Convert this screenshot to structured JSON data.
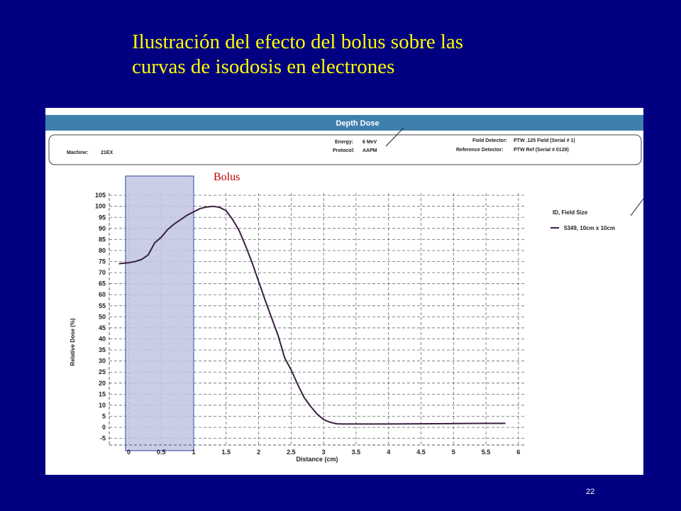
{
  "slide": {
    "title_line1": "Ilustración del efecto del bolus sobre las",
    "title_line2": "curvas de isodosis en electrones",
    "page_number": "22"
  },
  "report": {
    "header": "Depth Dose",
    "machine_label": "Machine:",
    "machine_value": "21EX",
    "energy_label": "Energy:",
    "energy_value": "6 MeV",
    "protocol_label": "Protocol:",
    "protocol_value": "AAPM",
    "field_detector_label": "Field Detector:",
    "field_detector_value": "PTW .125 Field (Serial # 1)",
    "reference_detector_label": "Reference Detector:",
    "reference_detector_value": "PTW Ref (Serial # 0129)"
  },
  "bolus": {
    "label": "Bolus",
    "x_start": -0.05,
    "x_end": 1.0
  },
  "colors": {
    "background": "#000080",
    "title": "#ffff00",
    "header_bar": "#3e7fae",
    "curve": "#3a2040",
    "bolus_fill": "#c0c6e2",
    "bolus_stroke": "#3347a8",
    "bolus_label": "#c00000"
  },
  "chart_data": {
    "type": "line",
    "xlabel": "Distance (cm)",
    "ylabel": "Relative Dose (%)",
    "xlim": [
      -0.3,
      6.1
    ],
    "ylim": [
      -8,
      106
    ],
    "x_ticks": [
      "0",
      "0.5",
      "1",
      "1.5",
      "2",
      "2.5",
      "3",
      "3.5",
      "4",
      "4.5",
      "5",
      "5.5",
      "6"
    ],
    "y_ticks": [
      "105",
      "100",
      "95",
      "90",
      "85",
      "80",
      "75",
      "70",
      "65",
      "60",
      "55",
      "50",
      "45",
      "40",
      "35",
      "30",
      "25",
      "20",
      "15",
      "10",
      "5",
      "0",
      "-5"
    ],
    "legend_title": "ID, Field Size",
    "legend_position": "right",
    "grid": true,
    "series": [
      {
        "name": "5349, 10cm x 10cm",
        "points": [
          [
            -0.15,
            74
          ],
          [
            0.0,
            74.5
          ],
          [
            0.1,
            75
          ],
          [
            0.2,
            76
          ],
          [
            0.3,
            78
          ],
          [
            0.4,
            83.5
          ],
          [
            0.5,
            86
          ],
          [
            0.6,
            89.5
          ],
          [
            0.7,
            92
          ],
          [
            0.8,
            94
          ],
          [
            0.9,
            96
          ],
          [
            1.0,
            97.5
          ],
          [
            1.1,
            99
          ],
          [
            1.2,
            99.7
          ],
          [
            1.3,
            100
          ],
          [
            1.4,
            99.5
          ],
          [
            1.5,
            98
          ],
          [
            1.6,
            94
          ],
          [
            1.7,
            89
          ],
          [
            1.8,
            82
          ],
          [
            1.9,
            74.5
          ],
          [
            2.0,
            66
          ],
          [
            2.1,
            57.5
          ],
          [
            2.2,
            49.5
          ],
          [
            2.3,
            41.5
          ],
          [
            2.4,
            31.5
          ],
          [
            2.5,
            26
          ],
          [
            2.6,
            19.5
          ],
          [
            2.7,
            13.5
          ],
          [
            2.8,
            9.5
          ],
          [
            2.9,
            6
          ],
          [
            3.0,
            3.5
          ],
          [
            3.1,
            2.3
          ],
          [
            3.2,
            1.6
          ],
          [
            3.3,
            1.5
          ],
          [
            3.5,
            1.5
          ],
          [
            4.0,
            1.5
          ],
          [
            4.5,
            1.6
          ],
          [
            5.0,
            1.7
          ],
          [
            5.5,
            1.8
          ],
          [
            5.8,
            1.8
          ]
        ]
      }
    ]
  }
}
